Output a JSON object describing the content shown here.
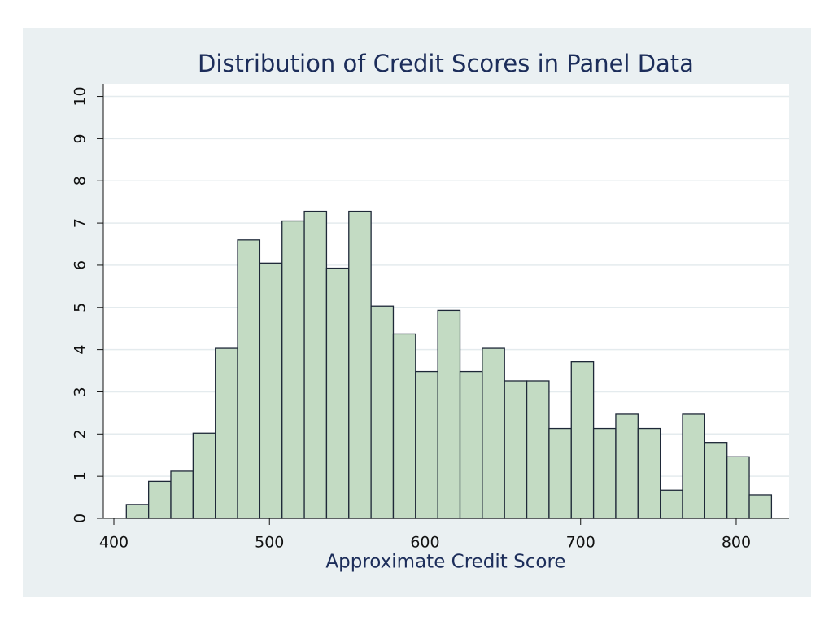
{
  "chart_data": {
    "type": "histogram",
    "title": "Distribution of Credit Scores in Panel  Data",
    "x_label": "Approximate Credit Score",
    "bins": [
      408,
      422.3,
      436.6,
      450.9,
      465.2,
      479.5,
      493.8,
      508.1,
      522.4,
      536.7,
      551,
      565.3,
      579.6,
      593.9,
      608.2,
      622.5,
      636.8,
      651.1,
      665.4,
      679.7,
      694,
      708.3,
      722.6,
      736.9,
      751.2,
      765.5,
      779.8,
      794.1,
      808.4,
      822.7
    ],
    "counts": [
      0.33,
      0.88,
      1.12,
      2.02,
      4.03,
      6.6,
      6.05,
      7.05,
      7.28,
      5.93,
      7.28,
      5.03,
      4.37,
      3.48,
      4.93,
      3.48,
      4.03,
      3.26,
      3.26,
      2.13,
      3.71,
      2.13,
      2.47,
      2.13,
      0.67,
      2.47,
      1.8,
      1.46,
      0.56
    ],
    "color": "#c3dbc3",
    "xlim": [
      393.2,
      834
    ],
    "ylim": [
      0,
      10.3
    ],
    "xticks": [
      400,
      500,
      600,
      700,
      800
    ],
    "yticks": [
      0,
      1,
      2,
      3,
      4,
      5,
      6,
      7,
      8,
      9,
      10
    ],
    "grid": true
  }
}
